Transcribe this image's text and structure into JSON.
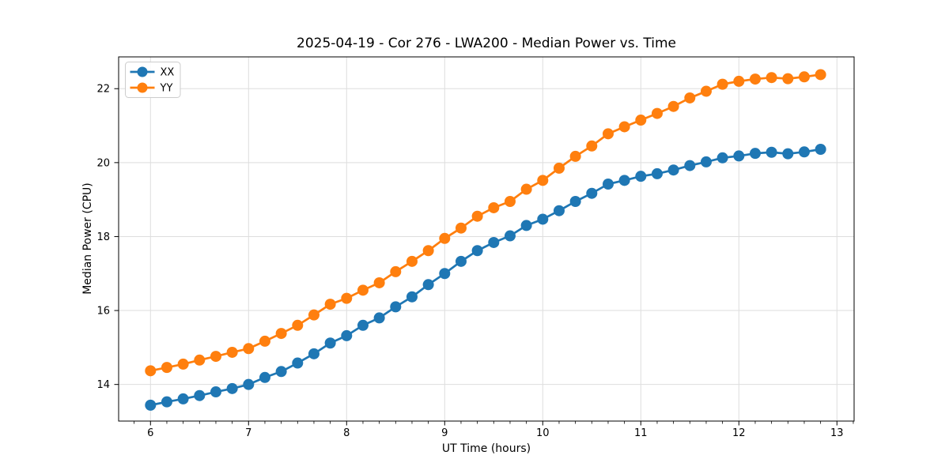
{
  "chart_data": {
    "type": "line",
    "title": "2025-04-19 - Cor 276 - LWA200 - Median Power vs. Time",
    "xlabel": "UT Time (hours)",
    "ylabel": "Median Power (CPU)",
    "xlim": [
      5.675,
      13.175
    ],
    "ylim": [
      13.01,
      22.86
    ],
    "xticks": [
      6,
      7,
      8,
      9,
      10,
      11,
      12,
      13
    ],
    "yticks": [
      14,
      16,
      18,
      20,
      22
    ],
    "x_minor_step": 0.1666667,
    "grid": true,
    "legend": {
      "position": "upper left"
    },
    "x": [
      6.0,
      6.1667,
      6.3333,
      6.5,
      6.6667,
      6.8333,
      7.0,
      7.1667,
      7.3333,
      7.5,
      7.6667,
      7.8333,
      8.0,
      8.1667,
      8.3333,
      8.5,
      8.6667,
      8.8333,
      9.0,
      9.1667,
      9.3333,
      9.5,
      9.6667,
      9.8333,
      10.0,
      10.1667,
      10.3333,
      10.5,
      10.6667,
      10.8333,
      11.0,
      11.1667,
      11.3333,
      11.5,
      11.6667,
      11.8333,
      12.0,
      12.1667,
      12.3333,
      12.5,
      12.6667,
      12.8333
    ],
    "series": [
      {
        "name": "XX",
        "color": "#1f77b4",
        "marker": "circle",
        "values": [
          13.44,
          13.53,
          13.61,
          13.7,
          13.8,
          13.89,
          14.0,
          14.19,
          14.35,
          14.58,
          14.83,
          15.12,
          15.32,
          15.6,
          15.8,
          16.1,
          16.37,
          16.7,
          17.0,
          17.33,
          17.62,
          17.84,
          18.02,
          18.3,
          18.47,
          18.7,
          18.95,
          19.17,
          19.42,
          19.52,
          19.63,
          19.7,
          19.8,
          19.92,
          20.02,
          20.13,
          20.18,
          20.25,
          20.28,
          20.24,
          20.29,
          20.36
        ]
      },
      {
        "name": "YY",
        "color": "#ff7f0e",
        "marker": "circle",
        "values": [
          14.37,
          14.46,
          14.55,
          14.66,
          14.76,
          14.87,
          14.97,
          15.17,
          15.38,
          15.6,
          15.88,
          16.17,
          16.33,
          16.55,
          16.75,
          17.05,
          17.33,
          17.62,
          17.95,
          18.23,
          18.55,
          18.78,
          18.95,
          19.28,
          19.52,
          19.85,
          20.17,
          20.45,
          20.78,
          20.97,
          21.15,
          21.33,
          21.52,
          21.75,
          21.93,
          22.12,
          22.2,
          22.26,
          22.3,
          22.27,
          22.32,
          22.38
        ]
      }
    ]
  },
  "colors": {
    "background": "#ffffff",
    "grid": "#dedede",
    "spine": "#000000",
    "text": "#000000",
    "legend_border": "#cccccc",
    "legend_bg": "#ffffff"
  }
}
